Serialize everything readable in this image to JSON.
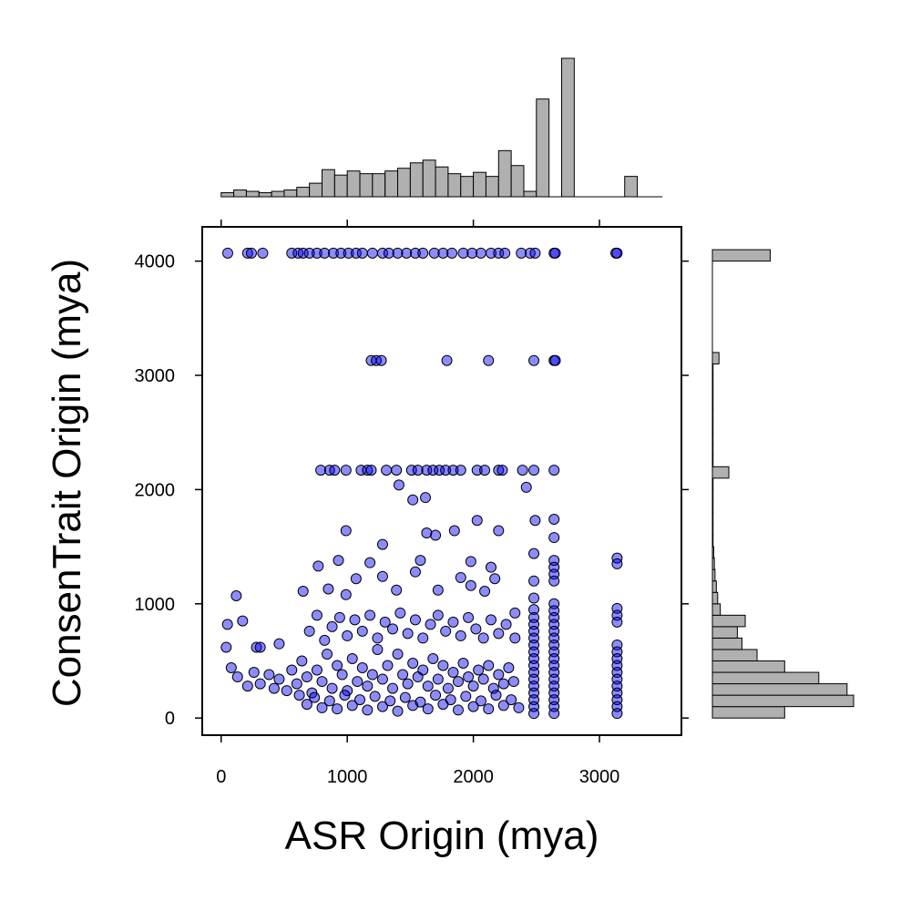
{
  "chart_data": {
    "type": "scatter",
    "xlabel": "ASR Origin (mya)",
    "ylabel": "ConsenTrait Origin (mya)",
    "xlim": [
      -150,
      3650
    ],
    "ylim": [
      -150,
      4300
    ],
    "x_ticks": [
      0,
      1000,
      2000,
      3000
    ],
    "x_tick_labels": [
      "0",
      "1000",
      "2000",
      "3000"
    ],
    "y_ticks": [
      0,
      1000,
      2000,
      3000,
      4000
    ],
    "y_tick_labels": [
      "0",
      "1000",
      "2000",
      "3000",
      "4000"
    ],
    "grid": false,
    "point_fill": "#0000ff",
    "point_fill_opacity": 0.45,
    "hist_fill": "#b0b0b0",
    "marginal_top": {
      "type": "histogram",
      "bin_width": 100,
      "bin_start": 0,
      "counts": [
        3,
        5,
        4,
        3,
        4,
        5,
        7,
        10,
        20,
        16,
        19,
        17,
        17,
        19,
        21,
        25,
        27,
        22,
        17,
        15,
        18,
        15,
        34,
        23,
        4,
        72,
        0,
        102,
        0,
        0,
        0,
        0,
        15,
        0,
        0
      ]
    },
    "marginal_right": {
      "type": "histogram",
      "bin_width": 100,
      "bin_start": 0,
      "counts": [
        110,
        215,
        205,
        162,
        110,
        68,
        45,
        38,
        50,
        12,
        8,
        6,
        4,
        3,
        2,
        1,
        1,
        1,
        1,
        1,
        1,
        25,
        1,
        1,
        1,
        1,
        1,
        1,
        1,
        1,
        1,
        10,
        0,
        0,
        0,
        0,
        0,
        0,
        0,
        0,
        88
      ]
    },
    "points": [
      [
        52,
        4070
      ],
      [
        210,
        4070
      ],
      [
        240,
        4070
      ],
      [
        330,
        4070
      ],
      [
        560,
        4070
      ],
      [
        610,
        4070
      ],
      [
        650,
        4070
      ],
      [
        700,
        4070
      ],
      [
        760,
        4070
      ],
      [
        820,
        4070
      ],
      [
        890,
        4070
      ],
      [
        950,
        4070
      ],
      [
        1010,
        4070
      ],
      [
        1070,
        4070
      ],
      [
        1120,
        4070
      ],
      [
        1200,
        4070
      ],
      [
        1280,
        4070
      ],
      [
        1330,
        4070
      ],
      [
        1400,
        4070
      ],
      [
        1470,
        4070
      ],
      [
        1540,
        4070
      ],
      [
        1600,
        4070
      ],
      [
        1690,
        4070
      ],
      [
        1760,
        4070
      ],
      [
        1830,
        4070
      ],
      [
        1920,
        4070
      ],
      [
        1990,
        4070
      ],
      [
        2060,
        4070
      ],
      [
        2140,
        4070
      ],
      [
        2200,
        4070
      ],
      [
        2250,
        4070
      ],
      [
        2380,
        4070
      ],
      [
        2450,
        4070
      ],
      [
        2490,
        4070
      ],
      [
        2640,
        4070
      ],
      [
        2650,
        4070
      ],
      [
        3130,
        4070
      ],
      [
        3140,
        4070
      ],
      [
        1190,
        3130
      ],
      [
        1230,
        3130
      ],
      [
        1270,
        3130
      ],
      [
        1790,
        3130
      ],
      [
        2120,
        3130
      ],
      [
        2480,
        3130
      ],
      [
        2640,
        3130
      ],
      [
        2650,
        3130
      ],
      [
        790,
        2170
      ],
      [
        860,
        2170
      ],
      [
        900,
        2170
      ],
      [
        990,
        2170
      ],
      [
        1110,
        2170
      ],
      [
        1160,
        2170
      ],
      [
        1190,
        2170
      ],
      [
        1310,
        2170
      ],
      [
        1390,
        2170
      ],
      [
        1510,
        2170
      ],
      [
        1560,
        2170
      ],
      [
        1630,
        2170
      ],
      [
        1680,
        2170
      ],
      [
        1730,
        2170
      ],
      [
        1780,
        2170
      ],
      [
        1840,
        2170
      ],
      [
        1900,
        2170
      ],
      [
        2030,
        2170
      ],
      [
        2090,
        2170
      ],
      [
        2200,
        2170
      ],
      [
        2230,
        2170
      ],
      [
        2390,
        2170
      ],
      [
        2480,
        2170
      ],
      [
        2640,
        2170
      ],
      [
        1410,
        2040
      ],
      [
        1520,
        1910
      ],
      [
        1620,
        1930
      ],
      [
        2030,
        1730
      ],
      [
        2490,
        1730
      ],
      [
        2640,
        1740
      ],
      [
        990,
        1640
      ],
      [
        1630,
        1620
      ],
      [
        1700,
        1600
      ],
      [
        1850,
        1640
      ],
      [
        2200,
        1640
      ],
      [
        1280,
        1520
      ],
      [
        2420,
        2020
      ],
      [
        2640,
        1580
      ],
      [
        2480,
        1440
      ],
      [
        2640,
        1380
      ],
      [
        3140,
        1400
      ],
      [
        3140,
        1350
      ],
      [
        930,
        1380
      ],
      [
        1180,
        1360
      ],
      [
        1580,
        1380
      ],
      [
        1980,
        1370
      ],
      [
        2140,
        1320
      ],
      [
        2640,
        1320
      ],
      [
        770,
        1330
      ],
      [
        1280,
        1240
      ],
      [
        1540,
        1280
      ],
      [
        1900,
        1230
      ],
      [
        2170,
        1220
      ],
      [
        2640,
        1260
      ],
      [
        2640,
        1200
      ],
      [
        2480,
        1200
      ],
      [
        1070,
        1220
      ],
      [
        850,
        1130
      ],
      [
        650,
        1110
      ],
      [
        990,
        1080
      ],
      [
        1390,
        1120
      ],
      [
        1720,
        1120
      ],
      [
        1980,
        1160
      ],
      [
        2090,
        1110
      ],
      [
        120,
        1070
      ],
      [
        2480,
        1050
      ],
      [
        2640,
        1000
      ],
      [
        2330,
        920
      ],
      [
        50,
        820
      ],
      [
        170,
        850
      ],
      [
        40,
        620
      ],
      [
        280,
        620
      ],
      [
        310,
        620
      ],
      [
        460,
        650
      ],
      [
        80,
        440
      ],
      [
        130,
        360
      ],
      [
        210,
        280
      ],
      [
        260,
        400
      ],
      [
        310,
        300
      ],
      [
        380,
        380
      ],
      [
        420,
        260
      ],
      [
        460,
        340
      ],
      [
        520,
        240
      ],
      [
        560,
        420
      ],
      [
        600,
        300
      ],
      [
        640,
        500
      ],
      [
        680,
        360
      ],
      [
        720,
        220
      ],
      [
        760,
        420
      ],
      [
        800,
        320
      ],
      [
        840,
        560
      ],
      [
        880,
        260
      ],
      [
        920,
        460
      ],
      [
        960,
        380
      ],
      [
        1000,
        240
      ],
      [
        1040,
        520
      ],
      [
        1080,
        320
      ],
      [
        1120,
        440
      ],
      [
        1160,
        280
      ],
      [
        1200,
        380
      ],
      [
        1240,
        600
      ],
      [
        1280,
        340
      ],
      [
        1320,
        460
      ],
      [
        1360,
        260
      ],
      [
        1400,
        560
      ],
      [
        1440,
        380
      ],
      [
        1480,
        300
      ],
      [
        1520,
        480
      ],
      [
        1560,
        360
      ],
      [
        1600,
        420
      ],
      [
        1640,
        280
      ],
      [
        1680,
        520
      ],
      [
        1720,
        340
      ],
      [
        1760,
        460
      ],
      [
        1800,
        260
      ],
      [
        1840,
        400
      ],
      [
        1880,
        320
      ],
      [
        1920,
        480
      ],
      [
        1960,
        360
      ],
      [
        2000,
        280
      ],
      [
        2040,
        420
      ],
      [
        2080,
        340
      ],
      [
        2120,
        460
      ],
      [
        2160,
        260
      ],
      [
        2200,
        380
      ],
      [
        2240,
        300
      ],
      [
        2280,
        440
      ],
      [
        2320,
        320
      ],
      [
        700,
        760
      ],
      [
        760,
        900
      ],
      [
        820,
        680
      ],
      [
        880,
        800
      ],
      [
        940,
        880
      ],
      [
        1000,
        720
      ],
      [
        1060,
        860
      ],
      [
        1120,
        760
      ],
      [
        1180,
        900
      ],
      [
        1240,
        700
      ],
      [
        1300,
        840
      ],
      [
        1360,
        780
      ],
      [
        1420,
        920
      ],
      [
        1480,
        740
      ],
      [
        1540,
        860
      ],
      [
        1600,
        700
      ],
      [
        1660,
        820
      ],
      [
        1720,
        900
      ],
      [
        1780,
        760
      ],
      [
        1840,
        840
      ],
      [
        1900,
        720
      ],
      [
        1960,
        880
      ],
      [
        2020,
        780
      ],
      [
        2080,
        700
      ],
      [
        2140,
        860
      ],
      [
        2200,
        740
      ],
      [
        2260,
        820
      ],
      [
        2330,
        700
      ],
      [
        620,
        200
      ],
      [
        680,
        120
      ],
      [
        740,
        180
      ],
      [
        800,
        90
      ],
      [
        860,
        150
      ],
      [
        920,
        80
      ],
      [
        980,
        200
      ],
      [
        1040,
        110
      ],
      [
        1100,
        160
      ],
      [
        1160,
        70
      ],
      [
        1220,
        190
      ],
      [
        1280,
        100
      ],
      [
        1340,
        150
      ],
      [
        1400,
        60
      ],
      [
        1460,
        180
      ],
      [
        1520,
        110
      ],
      [
        1580,
        140
      ],
      [
        1640,
        80
      ],
      [
        1700,
        200
      ],
      [
        1760,
        120
      ],
      [
        1820,
        160
      ],
      [
        1880,
        70
      ],
      [
        1940,
        190
      ],
      [
        2000,
        100
      ],
      [
        2060,
        150
      ],
      [
        2120,
        80
      ],
      [
        2180,
        200
      ],
      [
        2240,
        110
      ],
      [
        2300,
        160
      ],
      [
        2360,
        90
      ],
      [
        2480,
        950
      ],
      [
        2480,
        880
      ],
      [
        2480,
        820
      ],
      [
        2480,
        760
      ],
      [
        2480,
        700
      ],
      [
        2480,
        640
      ],
      [
        2480,
        580
      ],
      [
        2480,
        520
      ],
      [
        2480,
        460
      ],
      [
        2480,
        400
      ],
      [
        2480,
        340
      ],
      [
        2480,
        280
      ],
      [
        2480,
        220
      ],
      [
        2480,
        160
      ],
      [
        2480,
        100
      ],
      [
        2480,
        40
      ],
      [
        2640,
        940
      ],
      [
        2640,
        880
      ],
      [
        2640,
        820
      ],
      [
        2640,
        760
      ],
      [
        2640,
        700
      ],
      [
        2640,
        640
      ],
      [
        2640,
        580
      ],
      [
        2640,
        520
      ],
      [
        2640,
        460
      ],
      [
        2640,
        400
      ],
      [
        2640,
        340
      ],
      [
        2640,
        280
      ],
      [
        2640,
        220
      ],
      [
        2640,
        160
      ],
      [
        2640,
        100
      ],
      [
        2640,
        40
      ],
      [
        3140,
        960
      ],
      [
        3140,
        900
      ],
      [
        3140,
        840
      ],
      [
        3140,
        640
      ],
      [
        3140,
        580
      ],
      [
        3140,
        520
      ],
      [
        3140,
        460
      ],
      [
        3140,
        400
      ],
      [
        3140,
        340
      ],
      [
        3140,
        280
      ],
      [
        3140,
        220
      ],
      [
        3140,
        160
      ],
      [
        3140,
        100
      ],
      [
        3140,
        40
      ]
    ]
  }
}
